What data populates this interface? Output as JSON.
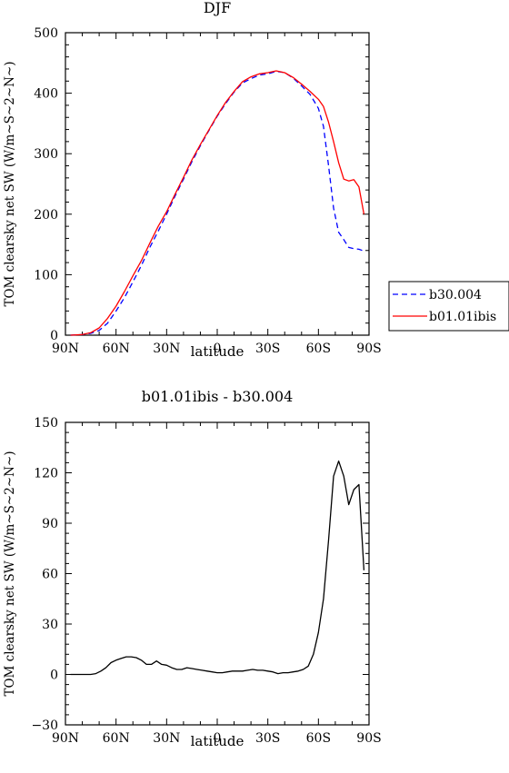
{
  "chart_data": [
    {
      "type": "line",
      "title": "DJF",
      "xlabel": "latitude",
      "ylabel": "TOM clearsky net SW (W/m~S~2~N~)",
      "xlim": [
        -90,
        90
      ],
      "ylim": [
        0,
        500
      ],
      "x_ticks": [
        -90,
        -60,
        -30,
        0,
        30,
        60,
        90
      ],
      "x_tick_labels": [
        "90N",
        "60N",
        "30N",
        "0",
        "30S",
        "60S",
        "90S"
      ],
      "y_ticks": [
        0,
        100,
        200,
        300,
        400,
        500
      ],
      "y_tick_labels": [
        "0",
        "100",
        "200",
        "300",
        "400",
        "500"
      ],
      "grid": false,
      "legend_position": "outside-right",
      "series": [
        {
          "name": "b30.004",
          "color": "#0000ff",
          "dash": "dashed",
          "x": [
            -87,
            -80,
            -75,
            -70,
            -65,
            -60,
            -55,
            -50,
            -45,
            -40,
            -35,
            -30,
            -25,
            -20,
            -15,
            -10,
            -5,
            0,
            5,
            10,
            15,
            20,
            25,
            30,
            35,
            40,
            45,
            50,
            55,
            60,
            63,
            66,
            69,
            72,
            75,
            78,
            81,
            84,
            87
          ],
          "y": [
            0,
            1,
            3,
            8,
            20,
            40,
            62,
            88,
            115,
            145,
            172,
            200,
            230,
            258,
            287,
            313,
            338,
            362,
            383,
            402,
            417,
            424,
            430,
            432,
            436,
            434,
            425,
            412,
            398,
            375,
            345,
            280,
            210,
            170,
            158,
            145,
            143,
            142,
            139
          ]
        },
        {
          "name": "b01.01ibis",
          "color": "#ff0000",
          "dash": "solid",
          "x": [
            -87,
            -80,
            -75,
            -70,
            -65,
            -60,
            -55,
            -50,
            -45,
            -40,
            -35,
            -30,
            -25,
            -20,
            -15,
            -10,
            -5,
            0,
            5,
            10,
            15,
            20,
            25,
            30,
            35,
            40,
            45,
            50,
            55,
            60,
            63,
            66,
            69,
            72,
            75,
            78,
            81,
            84,
            87
          ],
          "y": [
            0,
            1,
            4,
            12,
            28,
            48,
            72,
            98,
            123,
            152,
            180,
            204,
            233,
            261,
            290,
            315,
            339,
            363,
            385,
            403,
            419,
            427,
            432,
            434,
            437,
            434,
            426,
            415,
            403,
            390,
            378,
            352,
            320,
            285,
            258,
            255,
            257,
            245,
            200
          ]
        }
      ]
    },
    {
      "type": "line",
      "title": "b01.01ibis - b30.004",
      "xlabel": "latitude",
      "ylabel": "TOM clearsky net SW (W/m~S~2~N~)",
      "xlim": [
        -90,
        90
      ],
      "ylim": [
        -30,
        150
      ],
      "x_ticks": [
        -90,
        -60,
        -30,
        0,
        30,
        60,
        90
      ],
      "x_tick_labels": [
        "90N",
        "60N",
        "30N",
        "0",
        "30S",
        "60S",
        "90S"
      ],
      "y_ticks": [
        -30,
        0,
        30,
        60,
        90,
        120,
        150
      ],
      "y_tick_labels": [
        "−30",
        "0",
        "30",
        "60",
        "90",
        "120",
        "150"
      ],
      "grid": false,
      "series": [
        {
          "color": "#000000",
          "dash": "solid",
          "x": [
            -87,
            -80,
            -75,
            -72,
            -69,
            -66,
            -63,
            -60,
            -57,
            -54,
            -51,
            -48,
            -45,
            -42,
            -39,
            -36,
            -33,
            -30,
            -27,
            -24,
            -21,
            -18,
            -15,
            -12,
            -9,
            -6,
            -3,
            0,
            3,
            6,
            9,
            12,
            15,
            18,
            21,
            24,
            27,
            30,
            33,
            36,
            39,
            42,
            45,
            48,
            51,
            54,
            57,
            60,
            63,
            66,
            69,
            72,
            75,
            78,
            81,
            84,
            87
          ],
          "y": [
            0,
            0,
            0,
            0.5,
            2,
            4,
            7,
            8.5,
            9.5,
            10.5,
            10.5,
            10,
            8.5,
            6,
            6,
            8,
            6,
            5.5,
            4,
            3,
            3,
            4,
            3.5,
            3,
            2.5,
            2,
            1.5,
            1,
            1,
            1.5,
            2,
            2,
            2,
            2.5,
            3,
            2.5,
            2.5,
            2,
            1.5,
            0.5,
            1,
            1,
            1.5,
            2,
            3,
            5,
            12,
            25,
            45,
            80,
            118,
            127,
            118,
            101,
            110,
            113,
            62
          ]
        }
      ]
    }
  ]
}
